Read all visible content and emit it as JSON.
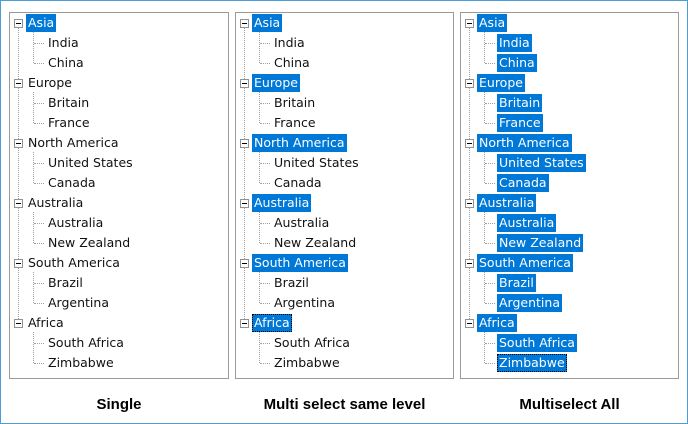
{
  "trees": [
    {
      "caption": "Single",
      "regions": [
        {
          "label": "Asia",
          "selected": true,
          "children": [
            {
              "label": "India",
              "selected": false
            },
            {
              "label": "China",
              "selected": false
            }
          ]
        },
        {
          "label": "Europe",
          "selected": false,
          "children": [
            {
              "label": "Britain",
              "selected": false
            },
            {
              "label": "France",
              "selected": false
            }
          ]
        },
        {
          "label": "North America",
          "selected": false,
          "children": [
            {
              "label": "United States",
              "selected": false
            },
            {
              "label": "Canada",
              "selected": false
            }
          ]
        },
        {
          "label": "Australia",
          "selected": false,
          "children": [
            {
              "label": "Australia",
              "selected": false
            },
            {
              "label": "New Zealand",
              "selected": false
            }
          ]
        },
        {
          "label": "South America",
          "selected": false,
          "children": [
            {
              "label": "Brazil",
              "selected": false
            },
            {
              "label": "Argentina",
              "selected": false
            }
          ]
        },
        {
          "label": "Africa",
          "selected": false,
          "children": [
            {
              "label": "South Africa",
              "selected": false
            },
            {
              "label": "Zimbabwe",
              "selected": false
            }
          ]
        }
      ]
    },
    {
      "caption": "Multi select same level",
      "regions": [
        {
          "label": "Asia",
          "selected": true,
          "children": [
            {
              "label": "India",
              "selected": false
            },
            {
              "label": "China",
              "selected": false
            }
          ]
        },
        {
          "label": "Europe",
          "selected": true,
          "children": [
            {
              "label": "Britain",
              "selected": false
            },
            {
              "label": "France",
              "selected": false
            }
          ]
        },
        {
          "label": "North America",
          "selected": true,
          "children": [
            {
              "label": "United States",
              "selected": false
            },
            {
              "label": "Canada",
              "selected": false
            }
          ]
        },
        {
          "label": "Australia",
          "selected": true,
          "children": [
            {
              "label": "Australia",
              "selected": false
            },
            {
              "label": "New Zealand",
              "selected": false
            }
          ]
        },
        {
          "label": "South America",
          "selected": true,
          "children": [
            {
              "label": "Brazil",
              "selected": false
            },
            {
              "label": "Argentina",
              "selected": false
            }
          ]
        },
        {
          "label": "Africa",
          "selected": true,
          "focused": true,
          "children": [
            {
              "label": "South Africa",
              "selected": false
            },
            {
              "label": "Zimbabwe",
              "selected": false
            }
          ]
        }
      ]
    },
    {
      "caption": "Multiselect All",
      "regions": [
        {
          "label": "Asia",
          "selected": true,
          "children": [
            {
              "label": "India",
              "selected": true
            },
            {
              "label": "China",
              "selected": true
            }
          ]
        },
        {
          "label": "Europe",
          "selected": true,
          "children": [
            {
              "label": "Britain",
              "selected": true
            },
            {
              "label": "France",
              "selected": true
            }
          ]
        },
        {
          "label": "North America",
          "selected": true,
          "children": [
            {
              "label": "United States",
              "selected": true
            },
            {
              "label": "Canada",
              "selected": true
            }
          ]
        },
        {
          "label": "Australia",
          "selected": true,
          "children": [
            {
              "label": "Australia",
              "selected": true
            },
            {
              "label": "New Zealand",
              "selected": true
            }
          ]
        },
        {
          "label": "South America",
          "selected": true,
          "children": [
            {
              "label": "Brazil",
              "selected": true
            },
            {
              "label": "Argentina",
              "selected": true
            }
          ]
        },
        {
          "label": "Africa",
          "selected": true,
          "children": [
            {
              "label": "South Africa",
              "selected": true
            },
            {
              "label": "Zimbabwe",
              "selected": true,
              "focused": true
            }
          ]
        }
      ]
    }
  ],
  "colors": {
    "selection": "#0078d7",
    "selected_text": "#ffffff",
    "border": "#9a9a9a"
  }
}
